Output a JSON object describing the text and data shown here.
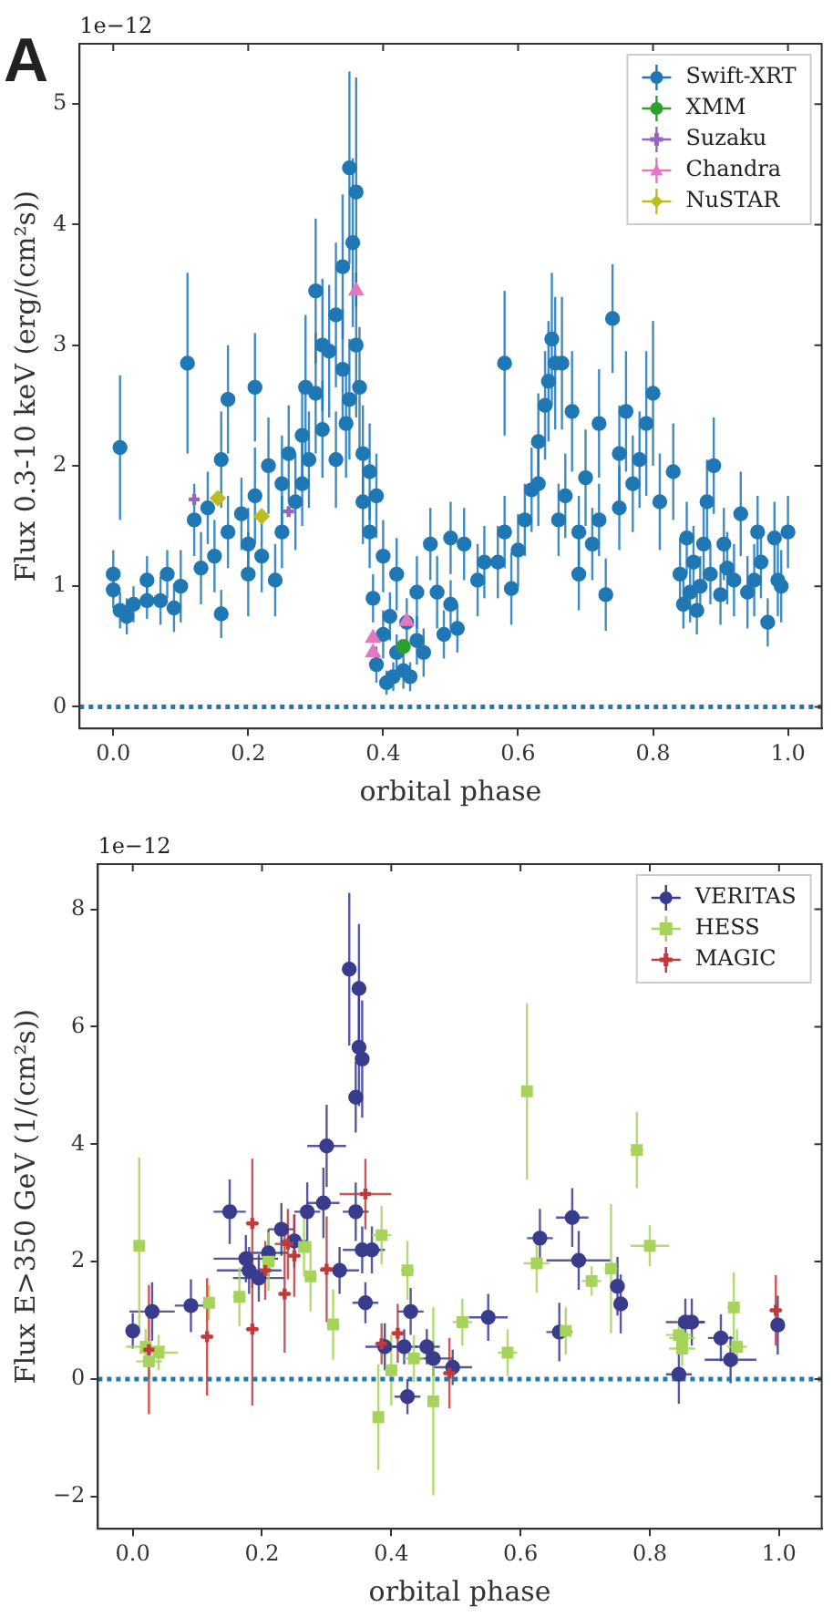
{
  "chart_data": [
    {
      "type": "scatter",
      "annotations": [
        "A",
        "1e−12"
      ],
      "xlabel": "orbital phase",
      "ylabel": "Flux 0.3-10 keV (erg/(cm²s))",
      "xlim": [
        -0.05,
        1.05
      ],
      "ylim": [
        -0.18,
        5.5
      ],
      "xticks": [
        {
          "value": 0,
          "label": "0.0"
        },
        {
          "value": 0.2,
          "label": "0.2"
        },
        {
          "value": 0.4,
          "label": "0.4"
        },
        {
          "value": 0.6,
          "label": "0.6"
        },
        {
          "value": 0.8,
          "label": "0.8"
        },
        {
          "value": 1,
          "label": "1.0"
        }
      ],
      "yticks": [
        0,
        1,
        2,
        3,
        4,
        5
      ],
      "grid": false,
      "legend": "top right",
      "ref_lines": [
        {
          "axis": "y",
          "value": 0,
          "color": "#1f77b4",
          "line_style": "dotted"
        }
      ],
      "series": [
        {
          "name": "Swift-XRT",
          "color": "#1f77b4",
          "marker": "circle",
          "x": [
            0.0,
            0.0,
            0.01,
            0.01,
            0.02,
            0.03,
            0.05,
            0.05,
            0.07,
            0.08,
            0.09,
            0.1,
            0.11,
            0.12,
            0.13,
            0.14,
            0.15,
            0.16,
            0.16,
            0.17,
            0.17,
            0.19,
            0.2,
            0.2,
            0.21,
            0.21,
            0.22,
            0.23,
            0.24,
            0.25,
            0.25,
            0.26,
            0.27,
            0.28,
            0.28,
            0.285,
            0.29,
            0.3,
            0.3,
            0.31,
            0.31,
            0.32,
            0.33,
            0.33,
            0.34,
            0.34,
            0.345,
            0.35,
            0.35,
            0.355,
            0.36,
            0.36,
            0.365,
            0.37,
            0.37,
            0.38,
            0.38,
            0.385,
            0.39,
            0.39,
            0.4,
            0.4,
            0.405,
            0.41,
            0.415,
            0.42,
            0.42,
            0.43,
            0.435,
            0.44,
            0.45,
            0.45,
            0.46,
            0.47,
            0.48,
            0.49,
            0.5,
            0.5,
            0.51,
            0.52,
            0.54,
            0.55,
            0.57,
            0.58,
            0.58,
            0.59,
            0.6,
            0.61,
            0.62,
            0.63,
            0.63,
            0.64,
            0.645,
            0.65,
            0.655,
            0.66,
            0.665,
            0.67,
            0.68,
            0.69,
            0.69,
            0.7,
            0.71,
            0.72,
            0.72,
            0.73,
            0.74,
            0.75,
            0.75,
            0.76,
            0.77,
            0.78,
            0.79,
            0.8,
            0.81,
            0.83,
            0.84,
            0.845,
            0.85,
            0.855,
            0.86,
            0.865,
            0.87,
            0.875,
            0.88,
            0.885,
            0.89,
            0.9,
            0.905,
            0.91,
            0.92,
            0.93,
            0.94,
            0.95,
            0.955,
            0.96,
            0.97,
            0.98,
            0.985,
            0.99,
            1.0
          ],
          "values": [
            1.1,
            0.97,
            2.15,
            0.8,
            0.75,
            0.85,
            1.05,
            0.88,
            0.88,
            1.1,
            0.82,
            1.0,
            2.85,
            1.55,
            1.15,
            1.65,
            1.25,
            2.05,
            0.77,
            2.55,
            1.45,
            1.6,
            1.35,
            1.1,
            2.65,
            1.75,
            1.25,
            2.0,
            1.05,
            1.85,
            1.45,
            2.1,
            1.7,
            2.25,
            1.85,
            2.65,
            2.05,
            3.45,
            2.6,
            3.0,
            2.3,
            2.95,
            3.25,
            2.05,
            3.65,
            2.8,
            2.35,
            4.47,
            2.55,
            3.85,
            4.27,
            3.0,
            2.65,
            2.1,
            1.7,
            1.95,
            1.45,
            0.9,
            1.75,
            0.35,
            1.25,
            0.6,
            0.2,
            0.75,
            0.25,
            1.1,
            0.45,
            0.3,
            0.7,
            0.25,
            0.55,
            0.95,
            0.45,
            1.35,
            0.95,
            0.6,
            1.4,
            0.85,
            0.65,
            1.35,
            1.05,
            1.2,
            1.2,
            2.85,
            1.45,
            0.98,
            1.3,
            1.55,
            1.8,
            2.2,
            1.85,
            2.5,
            2.7,
            3.05,
            2.85,
            1.55,
            2.85,
            1.75,
            2.45,
            1.45,
            1.1,
            1.9,
            1.35,
            2.35,
            1.55,
            0.93,
            3.22,
            2.1,
            1.65,
            2.45,
            1.85,
            2.05,
            2.35,
            2.6,
            1.7,
            1.95,
            1.1,
            0.85,
            1.4,
            0.95,
            1.2,
            0.8,
            1.0,
            1.35,
            1.7,
            1.1,
            2.0,
            0.93,
            1.35,
            1.15,
            1.05,
            1.6,
            0.95,
            1.05,
            1.45,
            1.2,
            0.7,
            1.4,
            1.05,
            1.0,
            1.45
          ],
          "errors": [
            0.2,
            0.15,
            0.6,
            0.15,
            0.15,
            0.15,
            0.2,
            0.15,
            0.2,
            0.2,
            0.2,
            0.3,
            0.75,
            0.3,
            0.3,
            0.3,
            0.3,
            0.4,
            0.2,
            0.45,
            0.3,
            0.3,
            0.3,
            0.35,
            0.45,
            0.4,
            0.3,
            0.4,
            0.3,
            0.4,
            0.3,
            0.4,
            0.4,
            0.4,
            0.35,
            0.6,
            0.4,
            0.6,
            0.5,
            0.55,
            0.4,
            0.55,
            0.6,
            0.4,
            0.6,
            0.5,
            0.45,
            0.8,
            0.5,
            0.7,
            0.95,
            0.6,
            0.5,
            0.4,
            0.35,
            0.4,
            0.3,
            0.2,
            0.35,
            0.15,
            0.3,
            0.2,
            0.1,
            0.2,
            0.12,
            0.3,
            0.15,
            0.15,
            0.2,
            0.12,
            0.2,
            0.3,
            0.2,
            0.3,
            0.3,
            0.2,
            0.3,
            0.2,
            0.2,
            0.3,
            0.3,
            0.3,
            0.3,
            0.6,
            0.3,
            0.3,
            0.3,
            0.3,
            0.35,
            0.4,
            0.35,
            0.45,
            0.5,
            0.55,
            0.55,
            0.3,
            0.55,
            0.35,
            0.5,
            0.3,
            0.3,
            0.4,
            0.3,
            0.45,
            0.3,
            0.3,
            0.45,
            0.4,
            0.35,
            0.5,
            0.4,
            0.4,
            0.6,
            0.6,
            0.4,
            0.4,
            0.3,
            0.2,
            0.3,
            0.25,
            0.3,
            0.2,
            0.25,
            0.3,
            0.35,
            0.25,
            0.4,
            0.25,
            0.3,
            0.3,
            0.3,
            0.35,
            0.3,
            0.3,
            0.3,
            0.3,
            0.2,
            0.3,
            0.3,
            0.3,
            0.3
          ]
        },
        {
          "name": "XMM",
          "color": "#2ca02c",
          "marker": "circle",
          "x": [
            0.43
          ],
          "values": [
            0.5
          ]
        },
        {
          "name": "Suzaku",
          "color": "#9467bd",
          "marker": "cross",
          "x": [
            0.12,
            0.26
          ],
          "values": [
            1.72,
            1.62
          ]
        },
        {
          "name": "Chandra",
          "color": "#e377c2",
          "marker": "triangle",
          "x": [
            0.36,
            0.385,
            0.385,
            0.435
          ],
          "values": [
            3.45,
            0.57,
            0.45,
            0.71
          ]
        },
        {
          "name": "NuSTAR",
          "color": "#bcbd22",
          "marker": "diamond",
          "x": [
            0.155,
            0.22
          ],
          "values": [
            1.73,
            1.58
          ]
        }
      ]
    },
    {
      "type": "scatter",
      "annotations": [
        "1e−12"
      ],
      "xlabel": "orbital phase",
      "ylabel": "Flux E>350 GeV (1/(cm²s))",
      "xlim": [
        -0.054,
        1.066
      ],
      "ylim": [
        -2.55,
        8.77
      ],
      "xticks": [
        {
          "value": 0,
          "label": "0.0"
        },
        {
          "value": 0.2,
          "label": "0.2"
        },
        {
          "value": 0.4,
          "label": "0.4"
        },
        {
          "value": 0.6,
          "label": "0.6"
        },
        {
          "value": 0.8,
          "label": "0.8"
        },
        {
          "value": 1,
          "label": "1.0"
        }
      ],
      "yticks": [
        {
          "value": -2,
          "label": "−2"
        },
        0,
        2,
        4,
        6,
        8
      ],
      "grid": false,
      "legend": "top right",
      "ref_lines": [
        {
          "axis": "y",
          "value": 0,
          "color": "#1f77b4",
          "line_style": "dotted"
        }
      ],
      "series": [
        {
          "name": "VERITAS",
          "color": "#393b8c",
          "marker": "circle",
          "x": [
            0.335,
            0.35,
            0.35,
            0.355,
            0.345,
            0.3,
            0.15,
            0.295,
            0.27,
            0.345,
            0.175,
            0.18,
            0.195,
            0.21,
            0.23,
            0.25,
            0.355,
            0.37,
            0.32,
            0.36,
            0.0,
            0.03,
            0.09,
            0.39,
            0.42,
            0.43,
            0.425,
            0.455,
            0.465,
            0.495,
            0.55,
            0.63,
            0.68,
            0.69,
            0.66,
            0.75,
            0.755,
            0.845,
            0.855,
            0.865,
            0.91,
            0.925,
            0.998
          ],
          "values": [
            6.98,
            6.65,
            5.65,
            5.45,
            4.8,
            3.97,
            2.85,
            3.0,
            2.85,
            2.85,
            2.05,
            1.85,
            1.72,
            2.15,
            2.55,
            2.35,
            2.2,
            2.2,
            1.85,
            1.3,
            0.82,
            1.15,
            1.25,
            0.55,
            0.55,
            1.15,
            -0.3,
            0.55,
            0.35,
            0.2,
            1.05,
            2.4,
            2.75,
            2.02,
            0.8,
            1.58,
            1.28,
            0.08,
            0.97,
            0.97,
            0.7,
            0.33,
            0.92
          ],
          "errors": [
            1.3,
            1.1,
            1.0,
            1.0,
            0.6,
            0.7,
            0.55,
            0.6,
            0.5,
            0.5,
            0.4,
            0.4,
            0.4,
            0.4,
            0.45,
            0.45,
            0.4,
            0.4,
            0.4,
            0.35,
            0.3,
            0.5,
            0.45,
            0.4,
            0.3,
            0.4,
            0.3,
            0.3,
            0.3,
            0.3,
            0.4,
            0.5,
            0.5,
            0.5,
            0.5,
            0.5,
            0.5,
            0.5,
            0.4,
            0.4,
            0.4,
            0.4,
            0.5
          ],
          "xerrors": [
            0.005,
            0.005,
            0.005,
            0.005,
            0.005,
            0.03,
            0.025,
            0.025,
            0.02,
            0.02,
            0.05,
            0.05,
            0.04,
            0.03,
            0.02,
            0.02,
            0.03,
            0.02,
            0.03,
            0.02,
            0.005,
            0.035,
            0.025,
            0.03,
            0.02,
            0.02,
            0.02,
            0.02,
            0.03,
            0.03,
            0.03,
            0.02,
            0.025,
            0.05,
            0.02,
            0.005,
            0.005,
            0.02,
            0.03,
            0.02,
            0.02,
            0.04,
            0.01
          ]
        },
        {
          "name": "HESS",
          "color": "#a6d35a",
          "marker": "square",
          "x": [
            0.01,
            0.02,
            0.025,
            0.04,
            0.118,
            0.165,
            0.21,
            0.265,
            0.275,
            0.31,
            0.38,
            0.385,
            0.4,
            0.425,
            0.435,
            0.465,
            0.51,
            0.58,
            0.61,
            0.625,
            0.67,
            0.71,
            0.74,
            0.78,
            0.8,
            0.845,
            0.85,
            0.85,
            0.93,
            0.935
          ],
          "values": [
            2.27,
            0.55,
            0.3,
            0.45,
            1.3,
            1.4,
            2.0,
            2.25,
            1.75,
            0.93,
            -0.65,
            2.45,
            0.15,
            1.85,
            0.35,
            -0.38,
            0.97,
            0.45,
            4.9,
            1.97,
            0.82,
            1.67,
            1.88,
            3.9,
            2.27,
            0.75,
            0.7,
            0.52,
            1.22,
            0.55
          ],
          "errors": [
            1.5,
            0.3,
            0.3,
            0.3,
            0.3,
            0.5,
            0.5,
            0.5,
            0.6,
            0.6,
            0.9,
            0.5,
            0.6,
            0.5,
            0.4,
            1.6,
            0.4,
            0.4,
            1.5,
            0.5,
            0.4,
            0.25,
            1.1,
            0.65,
            0.35,
            0.3,
            0.3,
            0.3,
            0.6,
            0.3
          ],
          "xerrors": [
            0.005,
            0.03,
            0.02,
            0.03,
            0.01,
            0.01,
            0.01,
            0.01,
            0.01,
            0.01,
            0.005,
            0.015,
            0.01,
            0.01,
            0.015,
            0.005,
            0.015,
            0.015,
            0.005,
            0.02,
            0.01,
            0.015,
            0.01,
            0.01,
            0.03,
            0.02,
            0.02,
            0.02,
            0.01,
            0.015
          ]
        },
        {
          "name": "MAGIC",
          "color": "#c0393b",
          "marker": "cross",
          "x": [
            0.025,
            0.115,
            0.185,
            0.185,
            0.205,
            0.235,
            0.24,
            0.25,
            0.3,
            0.36,
            0.385,
            0.41,
            0.49,
            0.995
          ],
          "values": [
            0.5,
            0.72,
            2.65,
            0.85,
            1.85,
            1.45,
            2.3,
            2.1,
            1.87,
            3.15,
            0.6,
            0.78,
            0.1,
            1.17
          ],
          "errors": [
            1.1,
            1.0,
            1.1,
            1.3,
            0.5,
            1.0,
            0.6,
            0.7,
            0.9,
            0.6,
            0.35,
            0.5,
            0.6,
            0.6
          ],
          "xerrors": [
            0.005,
            0.01,
            0.01,
            0.01,
            0.01,
            0.01,
            0.02,
            0.01,
            0.01,
            0.04,
            0.01,
            0.01,
            0.01,
            0.01
          ]
        }
      ]
    }
  ]
}
